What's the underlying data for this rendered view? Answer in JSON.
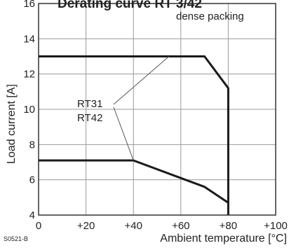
{
  "chart_data": {
    "type": "line",
    "title": "Derating curve RT 3/42",
    "xlabel": "Ambient temperature [°C]",
    "ylabel": "Load current [A]",
    "x_ticks": [
      "0",
      "+20",
      "+40",
      "+60",
      "+80",
      "+100"
    ],
    "x_tick_values": [
      0,
      20,
      40,
      60,
      80,
      100
    ],
    "y_ticks": [
      "4",
      "6",
      "8",
      "10",
      "12",
      "14",
      "16"
    ],
    "y_tick_values": [
      4,
      6,
      8,
      10,
      12,
      14,
      16
    ],
    "xlim": [
      0,
      100
    ],
    "ylim": [
      4,
      16
    ],
    "grid": true,
    "annotation": "dense packing",
    "figure_code": "S0521-B",
    "line_color": "#1a1a1a",
    "grid_color": "#9a9a9a",
    "series": [
      {
        "label": "RT31",
        "points": [
          [
            0,
            13
          ],
          [
            70,
            13
          ],
          [
            80,
            11.2
          ],
          [
            80,
            4
          ]
        ]
      },
      {
        "label": "RT42",
        "points": [
          [
            0,
            7.1
          ],
          [
            40,
            7.1
          ],
          [
            70,
            5.6
          ],
          [
            80,
            4.7
          ]
        ]
      }
    ]
  }
}
